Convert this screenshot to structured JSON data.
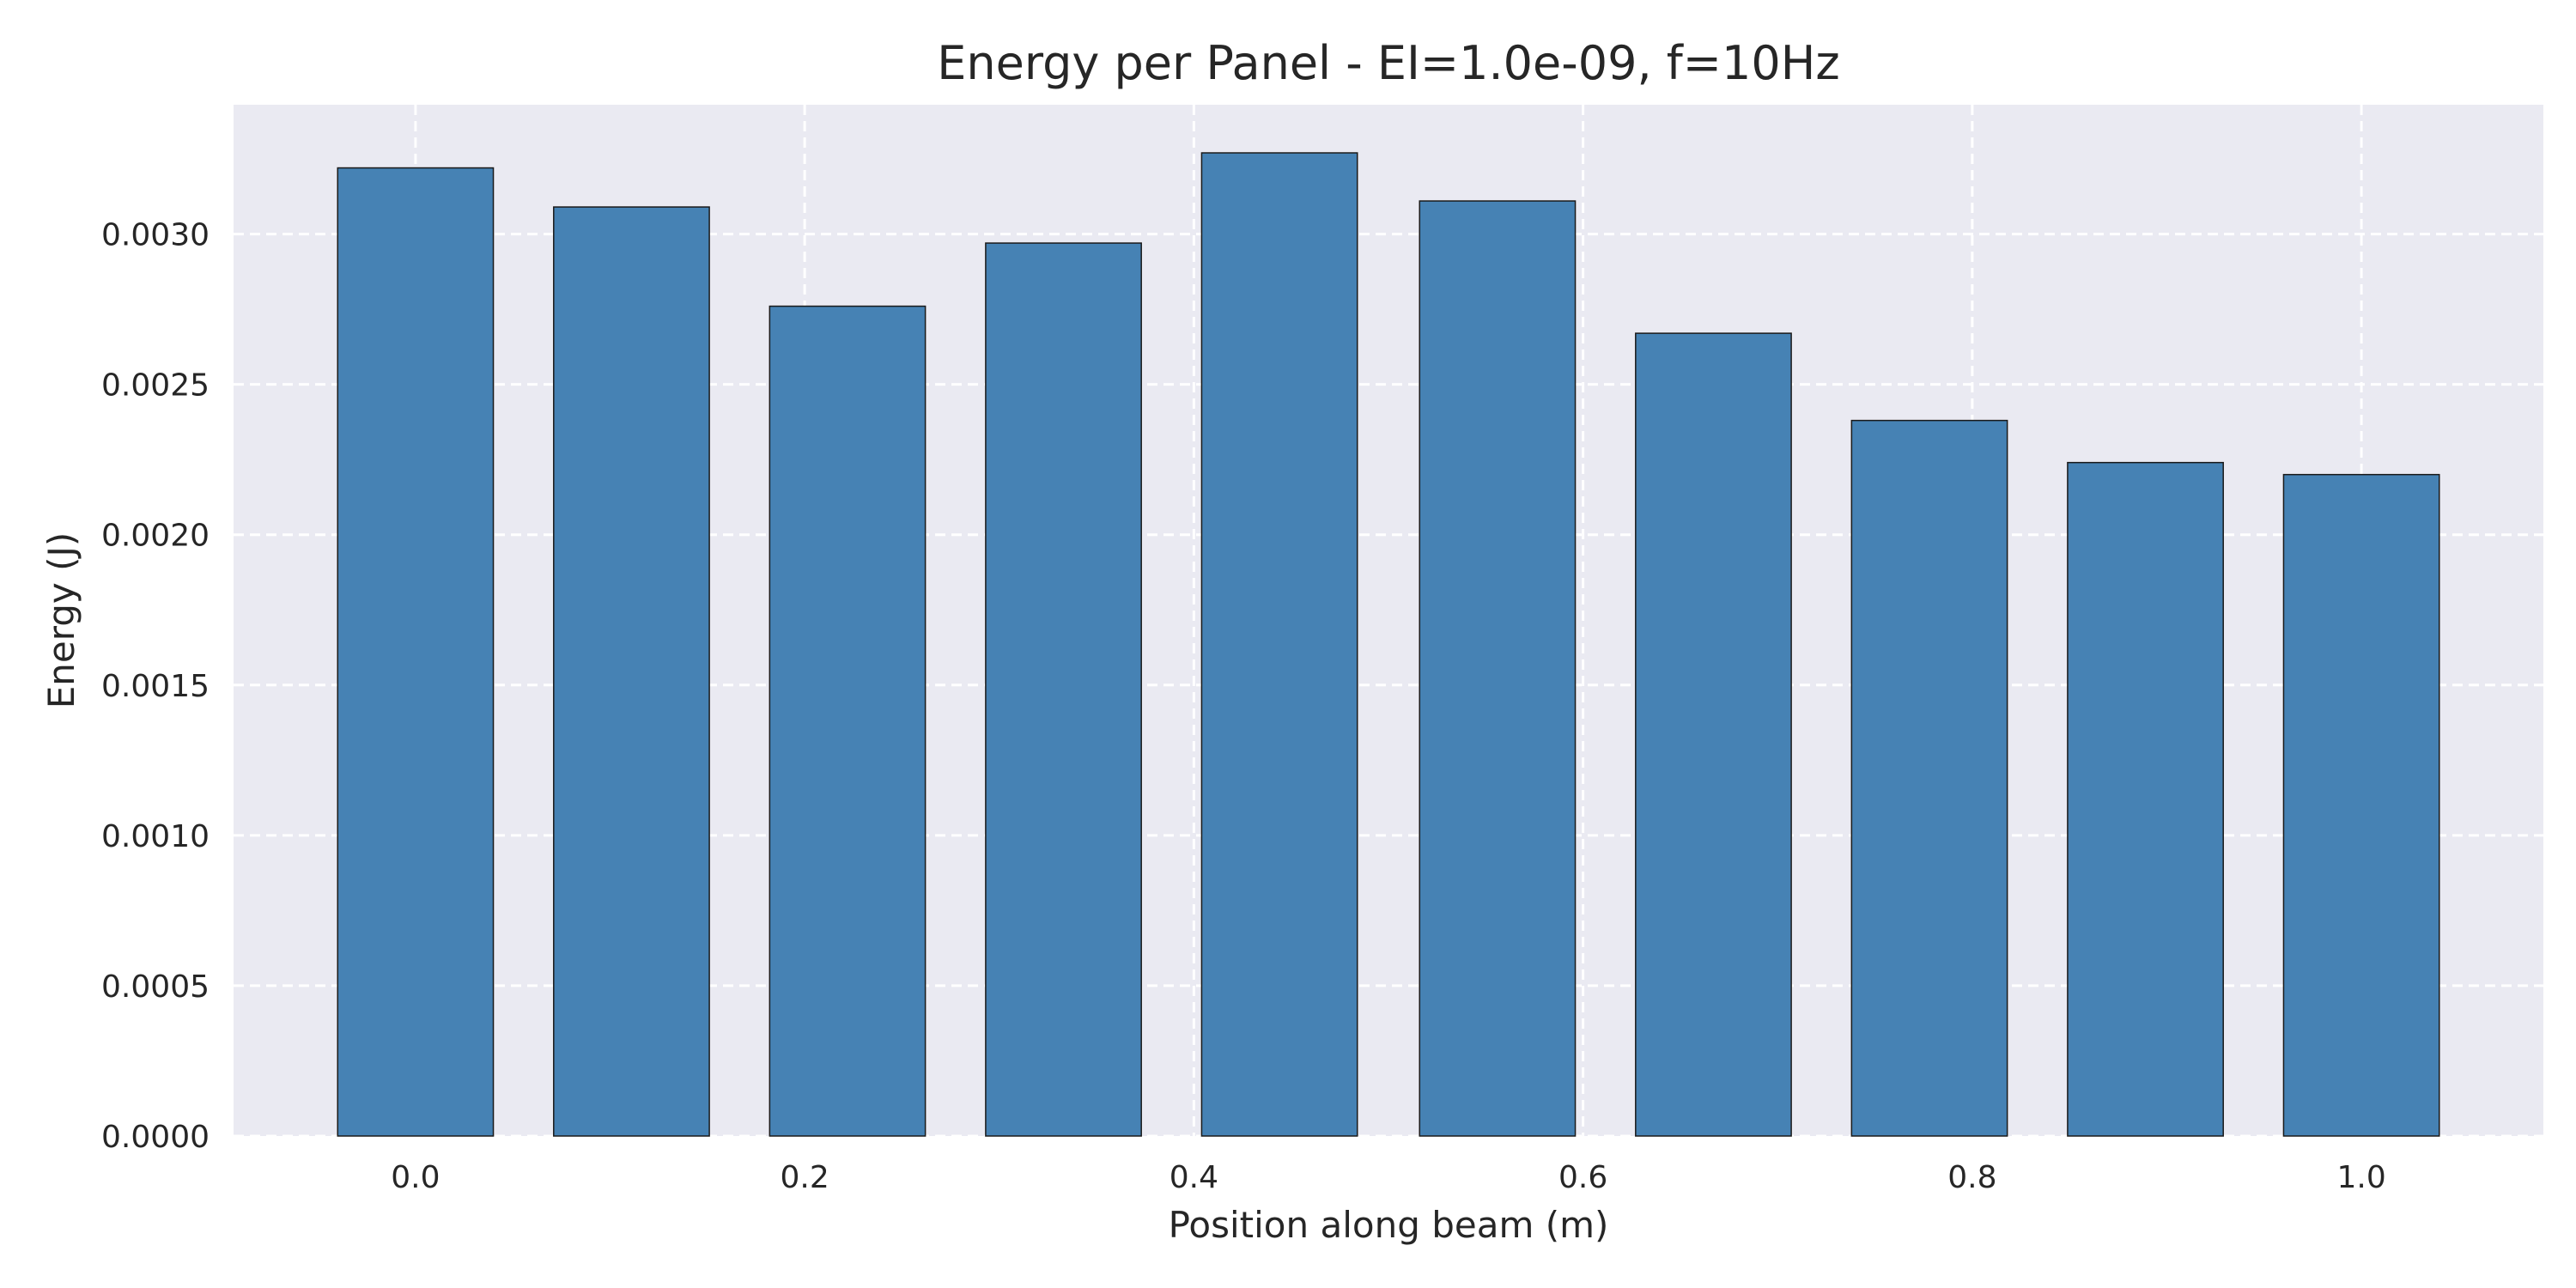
{
  "chart_data": {
    "type": "bar",
    "title": "Energy per Panel - EI=1.0e-09, f=10Hz",
    "xlabel": "Position along beam (m)",
    "ylabel": "Energy (J)",
    "x": [
      0.0,
      0.111,
      0.222,
      0.333,
      0.444,
      0.556,
      0.667,
      0.778,
      0.889,
      1.0
    ],
    "values": [
      0.00322,
      0.00309,
      0.00276,
      0.00297,
      0.00327,
      0.00311,
      0.00267,
      0.00238,
      0.00224,
      0.0022
    ],
    "xlim": [
      -0.0935,
      1.0935
    ],
    "ylim": [
      0,
      0.00343
    ],
    "xticks": [
      0.0,
      0.2,
      0.4,
      0.6,
      0.8,
      1.0
    ],
    "xtick_labels": [
      "0.0",
      "0.2",
      "0.4",
      "0.6",
      "0.8",
      "1.0"
    ],
    "yticks": [
      0,
      0.0005,
      0.001,
      0.0015,
      0.002,
      0.0025,
      0.003
    ],
    "ytick_labels": [
      "0.0000",
      "0.0005",
      "0.0010",
      "0.0015",
      "0.0020",
      "0.0025",
      "0.0030"
    ],
    "grid": true,
    "colors": {
      "bar_fill": "#4682b4",
      "bar_edge": "#1a1a1a",
      "plot_background": "#eaeaf2",
      "grid": "#ffffff",
      "text": "#262626"
    }
  }
}
